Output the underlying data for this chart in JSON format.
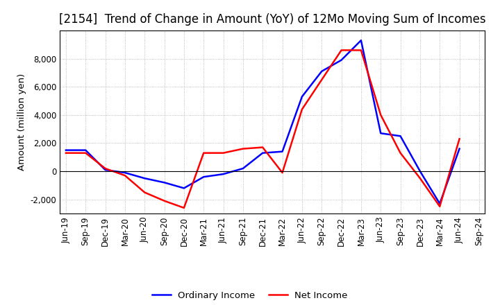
{
  "title": "[2154]  Trend of Change in Amount (YoY) of 12Mo Moving Sum of Incomes",
  "ylabel": "Amount (million yen)",
  "x_labels": [
    "Jun-19",
    "Sep-19",
    "Dec-19",
    "Mar-20",
    "Jun-20",
    "Sep-20",
    "Dec-20",
    "Mar-21",
    "Jun-21",
    "Sep-21",
    "Dec-21",
    "Mar-22",
    "Jun-22",
    "Sep-22",
    "Dec-22",
    "Mar-23",
    "Jun-23",
    "Sep-23",
    "Dec-23",
    "Mar-24",
    "Jun-24",
    "Sep-24"
  ],
  "ordinary_income": [
    1500,
    1500,
    100,
    -100,
    -500,
    -800,
    -1200,
    -400,
    -200,
    200,
    1300,
    1400,
    5300,
    7100,
    7900,
    9300,
    2700,
    2500,
    0,
    -2300,
    1600,
    null
  ],
  "net_income": [
    1300,
    1300,
    200,
    -300,
    -1500,
    -2100,
    -2600,
    1300,
    1300,
    1600,
    1700,
    -100,
    4400,
    6500,
    8600,
    8600,
    4000,
    1300,
    -500,
    -2500,
    2300,
    null
  ],
  "ordinary_color": "#0000ff",
  "net_color": "#ff0000",
  "background_color": "#ffffff",
  "grid_color": "#aaaaaa",
  "ylim": [
    -3000,
    10000
  ],
  "yticks": [
    -2000,
    0,
    2000,
    4000,
    6000,
    8000
  ],
  "title_fontsize": 12,
  "label_fontsize": 9.5,
  "tick_fontsize": 8.5,
  "legend_fontsize": 9.5
}
